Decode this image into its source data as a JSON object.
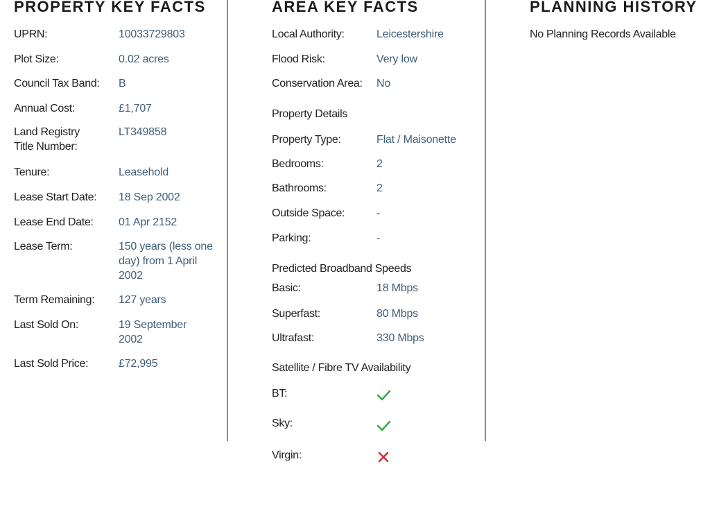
{
  "property": {
    "title": "PROPERTY KEY FACTS",
    "rows": [
      {
        "label": "UPRN:",
        "value": "10033729803"
      },
      {
        "label": "Plot Size:",
        "value": "0.02 acres"
      },
      {
        "label": "Council Tax Band:",
        "value": "B"
      },
      {
        "label": "Annual Cost:",
        "value": "£1,707"
      },
      {
        "label": "Land Registry Title Number:",
        "value": "LT349858"
      },
      {
        "label": "Tenure:",
        "value": "Leasehold"
      },
      {
        "label": "Lease Start Date:",
        "value": "18 Sep 2002"
      },
      {
        "label": "Lease End Date:",
        "value": "01 Apr 2152"
      },
      {
        "label": "Lease Term:",
        "value": "150 years (less one day) from 1 April 2002"
      },
      {
        "label": "Term Remaining:",
        "value": "127 years"
      },
      {
        "label": "Last Sold On:",
        "value": "19 September 2002"
      },
      {
        "label": "Last Sold Price:",
        "value": "£72,995"
      }
    ]
  },
  "area": {
    "title": "AREA KEY FACTS",
    "rows": [
      {
        "label": "Local Authority:",
        "value": "Leicestershire"
      },
      {
        "label": "Flood Risk:",
        "value": "Very low"
      },
      {
        "label": "Conservation Area:",
        "value": "No"
      }
    ],
    "property_details": {
      "title": "Property Details",
      "rows": [
        {
          "label": "Property Type:",
          "value": "Flat / Maisonette"
        },
        {
          "label": "Bedrooms:",
          "value": "2"
        },
        {
          "label": "Bathrooms:",
          "value": "2"
        },
        {
          "label": "Outside Space:",
          "value": "-"
        },
        {
          "label": "Parking:",
          "value": "-"
        }
      ]
    },
    "broadband": {
      "title": "Predicted Broadband Speeds",
      "rows": [
        {
          "label": "Basic:",
          "value": "18 Mbps"
        },
        {
          "label": "Superfast:",
          "value": "80 Mbps"
        },
        {
          "label": "Ultrafast:",
          "value": "330 Mbps"
        }
      ]
    },
    "tv": {
      "title": "Satellite / Fibre TV Availability",
      "rows": [
        {
          "label": "BT:",
          "icon": "check-icon",
          "available": true
        },
        {
          "label": "Sky:",
          "icon": "check-icon",
          "available": true
        },
        {
          "label": "Virgin:",
          "icon": "cross-icon",
          "available": false
        }
      ],
      "colors": {
        "check": "#3aa845",
        "cross": "#d1303a"
      }
    }
  },
  "planning": {
    "title": "PLANNING HISTORY",
    "message": "No Planning Records Available"
  }
}
